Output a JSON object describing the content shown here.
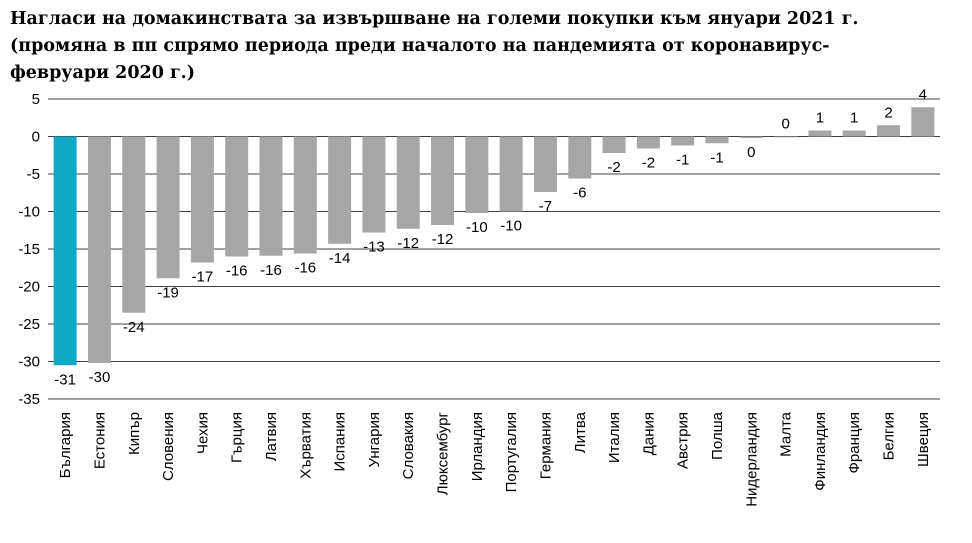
{
  "title_lines": [
    "Нагласи на домакинствата за извършване на големи покупки към януари 2021 г.",
    "(промяна в пп спрямо периода преди началото на пандемията от коронавирус-",
    "февруари 2020 г.)"
  ],
  "chart_data": {
    "type": "bar",
    "categories": [
      "България",
      "Естония",
      "Кипър",
      "Словения",
      "Чехия",
      "Гърция",
      "Латвия",
      "Хърватия",
      "Испания",
      "Унгария",
      "Словакия",
      "Люксембург",
      "Ирландия",
      "Португалия",
      "Германия",
      "Литва",
      "Италия",
      "Дания",
      "Австрия",
      "Полша",
      "Нидерландия",
      "Малта",
      "Финландия",
      "Франция",
      "Белгия",
      "Швеция"
    ],
    "values": [
      -30.5,
      -30.2,
      -23.5,
      -18.9,
      -16.8,
      -16.0,
      -15.9,
      -15.6,
      -14.3,
      -12.8,
      -12.3,
      -11.8,
      -10.2,
      -10.0,
      -7.4,
      -5.6,
      -2.2,
      -1.6,
      -1.2,
      -0.9,
      -0.2,
      0.0,
      0.8,
      0.8,
      1.5,
      3.9
    ],
    "data_labels": [
      "-31",
      "-30",
      "-24",
      "-19",
      "-17",
      "-16",
      "-16",
      "-16",
      "-14",
      "-13",
      "-12",
      "-12",
      "-10",
      "-10",
      "-7",
      "-6",
      "-2",
      "-2",
      "-1",
      "-1",
      "0",
      "0",
      "1",
      "1",
      "2",
      "4"
    ],
    "ylim": [
      -35,
      5
    ],
    "yticks": [
      5,
      0,
      -5,
      -10,
      -15,
      -20,
      -25,
      -30,
      -35
    ],
    "grid": true,
    "highlight_index": 0,
    "colors": {
      "bar": "#a6a6a6",
      "highlight": "#0fa8c8",
      "grid": "#000000"
    }
  }
}
